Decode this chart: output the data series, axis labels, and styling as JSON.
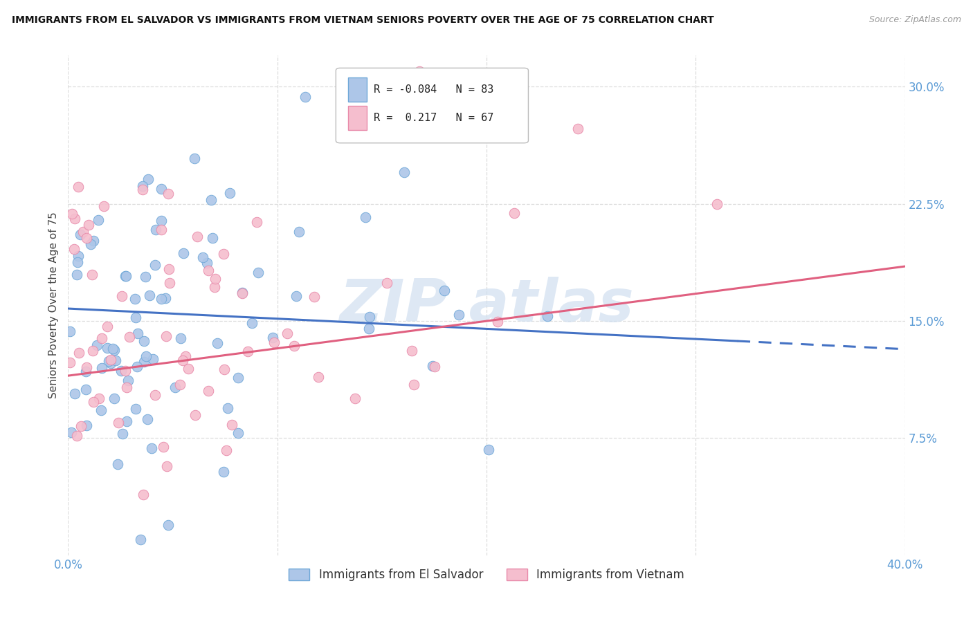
{
  "title": "IMMIGRANTS FROM EL SALVADOR VS IMMIGRANTS FROM VIETNAM SENIORS POVERTY OVER THE AGE OF 75 CORRELATION CHART",
  "source": "Source: ZipAtlas.com",
  "ylabel": "Seniors Poverty Over the Age of 75",
  "legend_label1": "Immigrants from El Salvador",
  "legend_label2": "Immigrants from Vietnam",
  "R1": -0.084,
  "N1": 83,
  "R2": 0.217,
  "N2": 67,
  "color1": "#adc6e8",
  "color2": "#f5bece",
  "edge_color1": "#6fa8d8",
  "edge_color2": "#e88aaa",
  "line_color1": "#4472c4",
  "line_color2": "#e06080",
  "background_color": "#ffffff",
  "xlim": [
    0.0,
    0.4
  ],
  "ylim": [
    0.0,
    0.32
  ],
  "x_ticks": [
    0.0,
    0.1,
    0.2,
    0.3,
    0.4
  ],
  "x_tick_labels": [
    "0.0%",
    "",
    "",
    "",
    "40.0%"
  ],
  "y_ticks": [
    0.075,
    0.15,
    0.225,
    0.3
  ],
  "y_tick_labels": [
    "7.5%",
    "15.0%",
    "22.5%",
    "30.0%"
  ],
  "watermark_text": "ZIP atlas",
  "watermark_color": "#d0dff0",
  "tick_color": "#5b9bd5"
}
